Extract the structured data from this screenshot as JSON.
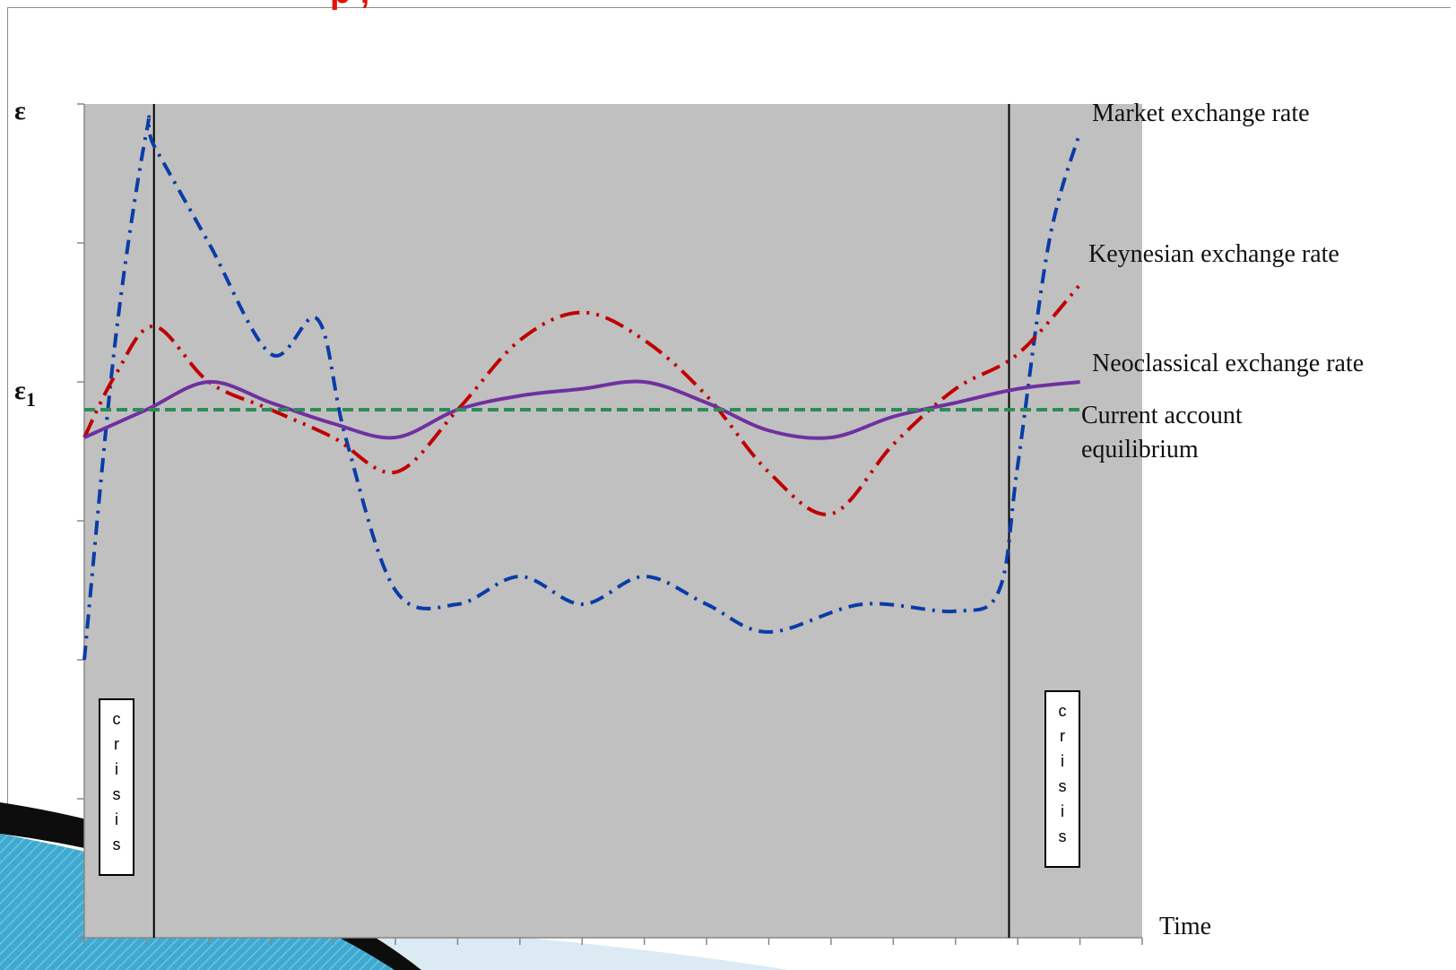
{
  "slide": {
    "title_fragment": "p , "
  },
  "chart_data": {
    "type": "line",
    "y_axis_label": "ε",
    "y_axis_marker": "ε",
    "y_axis_marker_subscript": "1",
    "xlabel": "Time",
    "x_range": [
      0,
      17
    ],
    "y_range": [
      0,
      6
    ],
    "x_ticks": [
      0,
      1,
      2,
      3,
      4,
      5,
      6,
      7,
      8,
      9,
      10,
      11,
      12,
      13,
      14,
      15,
      16,
      17
    ],
    "y_ticks": [
      0,
      1,
      2,
      3,
      4,
      5,
      6
    ],
    "grid": false,
    "plot_background": "#c0c0c0",
    "crisis_lines_x": [
      1.12,
      14.86
    ],
    "crisis_boxes": [
      {
        "x": 0.5,
        "label": "crisis",
        "letters": [
          "c",
          "r",
          "i",
          "s",
          "i",
          "s"
        ]
      },
      {
        "x": 15.7,
        "label": "crisis",
        "letters": [
          "c",
          "r",
          "i",
          "s",
          "i",
          "s"
        ]
      }
    ],
    "series": [
      {
        "name": "Market exchange rate",
        "label_lines": [
          "Market exchange rate"
        ],
        "color": "#0a3ca8",
        "dash": "dash-dot",
        "x": [
          0,
          0.5,
          1,
          1.12,
          2,
          3,
          3.75,
          4.2,
          5,
          6,
          7,
          8,
          9,
          10,
          11,
          12.5,
          14,
          14.7,
          15,
          15.5,
          16
        ],
        "y": [
          2,
          4.3,
          5.8,
          5.7,
          5,
          4.2,
          4.45,
          3.6,
          2.5,
          2.4,
          2.6,
          2.4,
          2.6,
          2.4,
          2.2,
          2.4,
          2.35,
          2.5,
          3.4,
          5.0,
          5.8
        ]
      },
      {
        "name": "Keynesian exchange rate",
        "label_lines": [
          "Keynesian exchange rate"
        ],
        "color": "#c00000",
        "dash": "dash-dot-dot",
        "x": [
          0,
          0.5,
          1.12,
          2,
          3,
          4,
          5,
          6,
          7,
          8,
          9,
          10,
          11,
          12,
          13,
          14,
          15,
          16
        ],
        "y": [
          3.6,
          4.05,
          4.4,
          4.0,
          3.8,
          3.6,
          3.35,
          3.8,
          4.3,
          4.5,
          4.3,
          3.9,
          3.35,
          3.05,
          3.55,
          3.95,
          4.2,
          4.7
        ]
      },
      {
        "name": "Neoclassical exchange rate",
        "label_lines": [
          "Neoclassical exchange rate"
        ],
        "color": "#7030a0",
        "dash": "solid",
        "x": [
          0,
          1,
          2,
          3,
          4,
          5,
          6,
          7,
          8,
          9,
          10,
          11,
          12,
          13,
          14,
          15,
          16
        ],
        "y": [
          3.6,
          3.8,
          4.0,
          3.85,
          3.7,
          3.6,
          3.8,
          3.9,
          3.95,
          4.0,
          3.85,
          3.65,
          3.6,
          3.75,
          3.85,
          3.95,
          4.0
        ]
      },
      {
        "name": "Current account equilibrium",
        "label_lines": [
          "Current account",
          "equilibrium"
        ],
        "color": "#2e8b57",
        "dash": "dashed",
        "x": [
          0,
          16
        ],
        "y": [
          3.8,
          3.8
        ]
      }
    ]
  }
}
